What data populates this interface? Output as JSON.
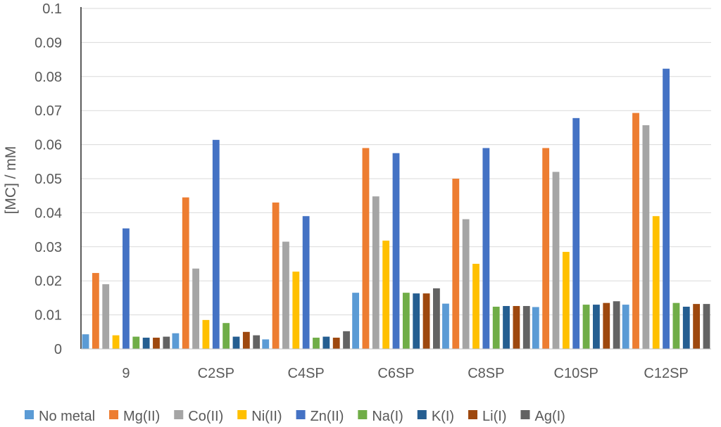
{
  "chart_data": {
    "type": "bar",
    "title": "",
    "xlabel": "",
    "ylabel": "[MC] / mM",
    "ylim": [
      0,
      0.1
    ],
    "yticks": [
      "0",
      "0.01",
      "0.02",
      "0.03",
      "0.04",
      "0.05",
      "0.06",
      "0.07",
      "0.08",
      "0.09",
      "0.1"
    ],
    "grid": true,
    "legend_position": "bottom",
    "categories": [
      "9",
      "C2SP",
      "C4SP",
      "C6SP",
      "C8SP",
      "C10SP",
      "C12SP"
    ],
    "series": [
      {
        "name": "No metal",
        "color": "#5B9BD5",
        "values": [
          0.0043,
          0.0046,
          0.0028,
          0.0165,
          0.0133,
          0.0123,
          0.013
        ]
      },
      {
        "name": "Mg(II)",
        "color": "#ED7D31",
        "values": [
          0.0223,
          0.0445,
          0.043,
          0.059,
          0.05,
          0.059,
          0.0693
        ]
      },
      {
        "name": "Co(II)",
        "color": "#A5A5A5",
        "values": [
          0.019,
          0.0236,
          0.0315,
          0.0448,
          0.0381,
          0.052,
          0.0657
        ]
      },
      {
        "name": "Ni(II)",
        "color": "#FFC000",
        "values": [
          0.004,
          0.0085,
          0.0227,
          0.0318,
          0.025,
          0.0285,
          0.039
        ]
      },
      {
        "name": "Zn(II)",
        "color": "#4472C4",
        "values": [
          0.0354,
          0.0614,
          0.039,
          0.0575,
          0.059,
          0.0678,
          0.0823
        ]
      },
      {
        "name": "Na(I)",
        "color": "#70AD47",
        "values": [
          0.0036,
          0.0076,
          0.0033,
          0.0165,
          0.0124,
          0.013,
          0.0135
        ]
      },
      {
        "name": "K(I)",
        "color": "#255E91",
        "values": [
          0.0033,
          0.0036,
          0.0036,
          0.0163,
          0.0126,
          0.013,
          0.0124
        ]
      },
      {
        "name": "Li(I)",
        "color": "#9E480E",
        "values": [
          0.0033,
          0.005,
          0.0033,
          0.0163,
          0.0126,
          0.0135,
          0.0132
        ]
      },
      {
        "name": "Ag(I)",
        "color": "#636363",
        "values": [
          0.0036,
          0.004,
          0.0052,
          0.0178,
          0.0126,
          0.014,
          0.0132
        ]
      }
    ]
  }
}
